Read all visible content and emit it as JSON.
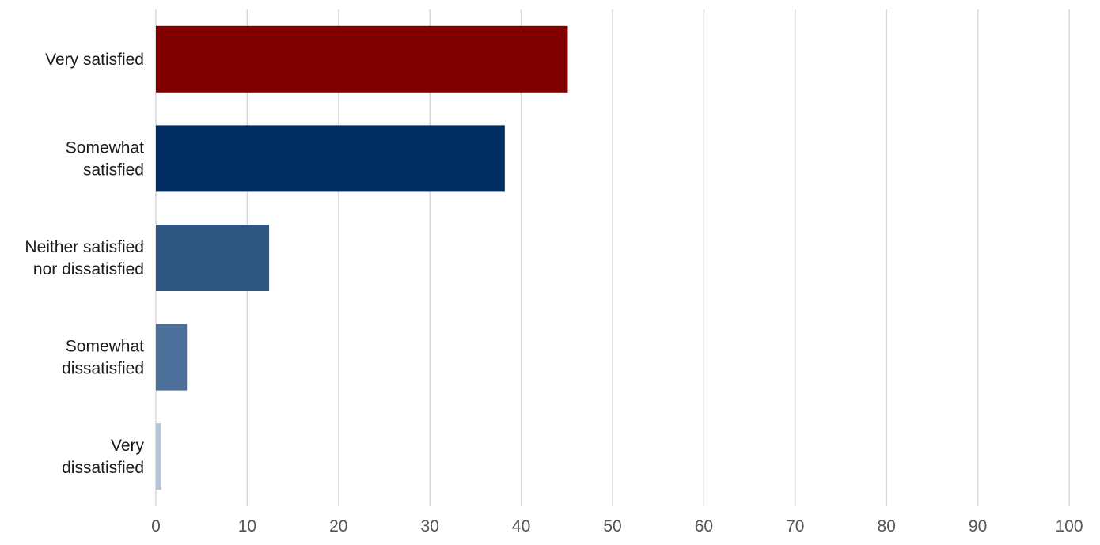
{
  "chart_data": {
    "type": "bar",
    "orientation": "horizontal",
    "categories": [
      [
        "Very satisfied"
      ],
      [
        "Somewhat",
        "satisfied"
      ],
      [
        "Neither satisfied",
        "nor dissatisfied"
      ],
      [
        "Somewhat",
        "dissatisfied"
      ],
      [
        "Very",
        "dissatisfied"
      ]
    ],
    "values": [
      45.1,
      38.2,
      12.4,
      3.4,
      0.6
    ],
    "colors": [
      "#800000",
      "#002d62",
      "#2f5681",
      "#4b6f98",
      "#b4c3d7"
    ],
    "xlim": [
      0,
      100
    ],
    "xticks": [
      "0",
      "10",
      "20",
      "30",
      "40",
      "50",
      "60",
      "70",
      "80",
      "90",
      "100"
    ],
    "grid": true
  }
}
